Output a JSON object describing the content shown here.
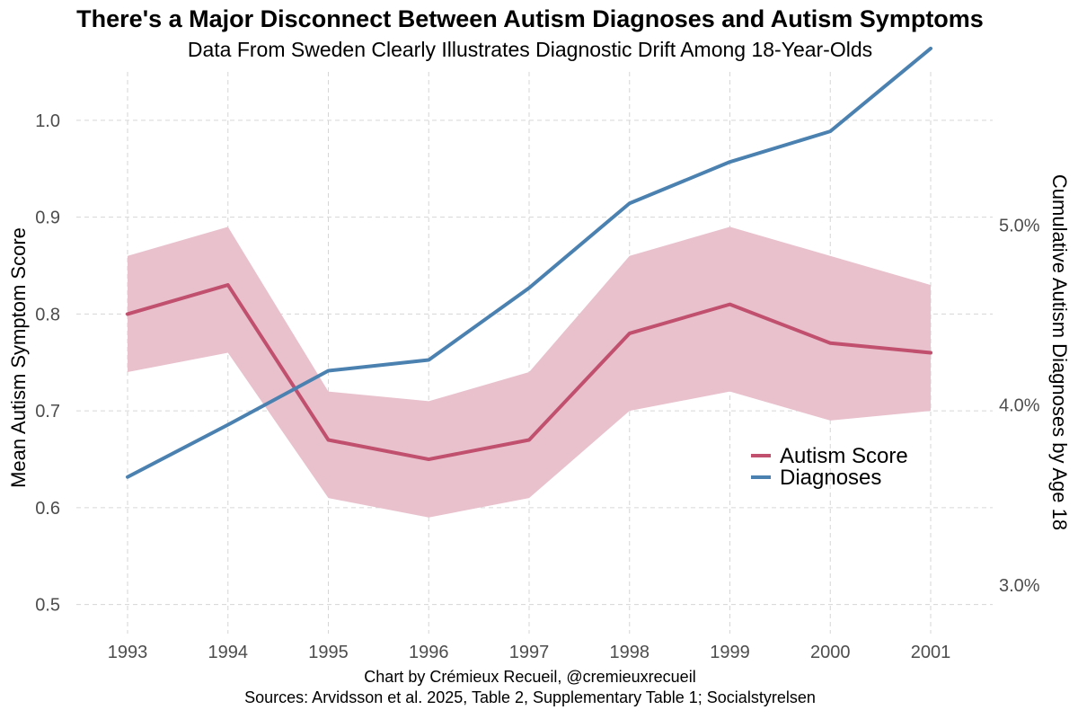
{
  "chart_data": {
    "type": "line",
    "title": "There's a Major Disconnect Between Autism Diagnoses and Autism Symptoms",
    "subtitle": "Data From Sweden Clearly Illustrates Diagnostic Drift Among 18-Year-Olds",
    "x": [
      1993,
      1994,
      1995,
      1996,
      1997,
      1998,
      1999,
      2000,
      2001
    ],
    "x_tick_labels": [
      "1993",
      "1994",
      "1995",
      "1996",
      "1997",
      "1998",
      "1999",
      "2000",
      "2001"
    ],
    "ylabel": "Mean Autism Symptom Score",
    "ylim": [
      0.47,
      1.05
    ],
    "y_ticks": [
      0.5,
      0.6,
      0.7,
      0.8,
      0.9,
      1.0
    ],
    "y_tick_labels": [
      "0.5",
      "0.6",
      "0.7",
      "0.8",
      "0.9",
      "1.0"
    ],
    "y2label": "Cumulative Autism Diagnoses by Age 18",
    "y2lim": [
      2.73,
      5.85
    ],
    "y2_ticks": [
      3.0,
      4.0,
      5.0
    ],
    "y2_tick_labels": [
      "3.0%",
      "4.0%",
      "5.0%"
    ],
    "grid": true,
    "legend_position": "right",
    "series": [
      {
        "name": "Autism Score",
        "axis": "left",
        "color": "#c0506e",
        "band_color": "#e8c1cd",
        "values": [
          0.8,
          0.83,
          0.67,
          0.65,
          0.67,
          0.78,
          0.81,
          0.77,
          0.76
        ],
        "lower": [
          0.74,
          0.76,
          0.61,
          0.59,
          0.61,
          0.7,
          0.72,
          0.69,
          0.7
        ],
        "upper": [
          0.86,
          0.89,
          0.72,
          0.71,
          0.74,
          0.86,
          0.89,
          0.86,
          0.83
        ]
      },
      {
        "name": "Diagnoses",
        "axis": "right",
        "color": "#4a81b0",
        "values": [
          3.6,
          3.89,
          4.19,
          4.25,
          4.65,
          5.12,
          5.35,
          5.52,
          5.98
        ]
      }
    ]
  },
  "captions": {
    "line1": "Chart by Crémieux Recueil, @cremieuxrecueil",
    "line2": "Sources: Arvidsson et al. 2025, Table 2, Supplementary Table 1; Socialstyrelsen"
  }
}
